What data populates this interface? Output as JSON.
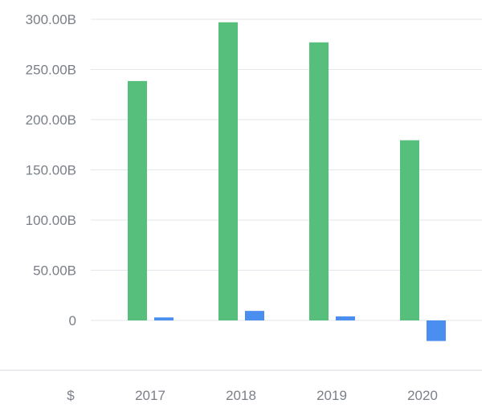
{
  "chart_data": {
    "type": "bar",
    "categories": [
      "2017",
      "2018",
      "2019",
      "2020"
    ],
    "series": [
      {
        "color": "#55bf7b",
        "values": [
          238.5,
          297.0,
          277.0,
          179.5
        ]
      },
      {
        "color": "#4a8ff0",
        "values": [
          3.0,
          9.5,
          4.0,
          -20.5
        ]
      }
    ],
    "ylim": [
      -40,
      300
    ],
    "yticks": [
      0,
      50,
      100,
      150,
      200,
      250,
      300
    ],
    "ytick_labels": [
      "0",
      "50.00B",
      "100.00B",
      "150.00B",
      "200.00B",
      "250.00B",
      "300.00B"
    ],
    "currency_label": "$",
    "grid": true,
    "title": "",
    "xlabel": "",
    "ylabel": ""
  }
}
